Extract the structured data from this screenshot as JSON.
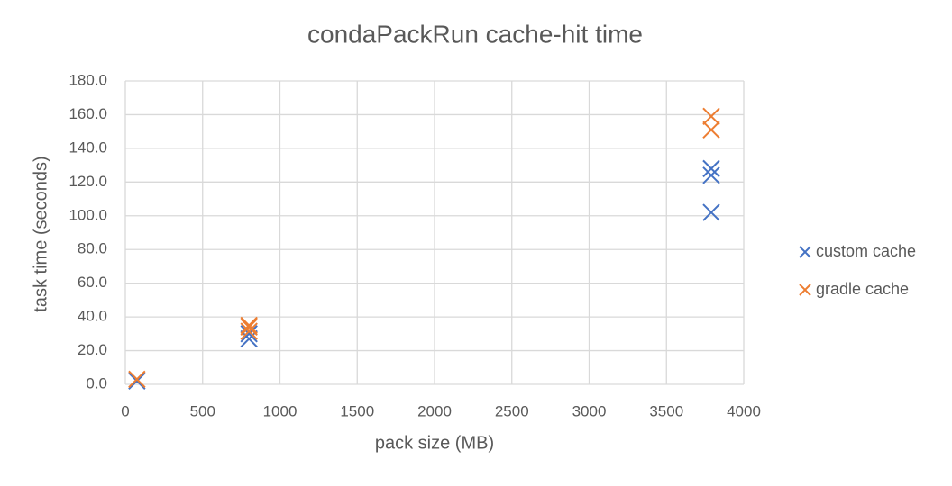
{
  "chart_data": {
    "type": "scatter",
    "title": "condaPackRun cache-hit time",
    "x_label": "pack size (MB)",
    "y_label": "task time (seconds)",
    "xlim": [
      0,
      4000
    ],
    "xticks": [
      0,
      500,
      1000,
      1500,
      2000,
      2500,
      3000,
      3500,
      4000
    ],
    "ylim": [
      0,
      180
    ],
    "yticks": [
      {
        "value": 0,
        "label": "0.0"
      },
      {
        "value": 20,
        "label": "20.0"
      },
      {
        "value": 40,
        "label": "40.0"
      },
      {
        "value": 60,
        "label": "60.0"
      },
      {
        "value": 80,
        "label": "80.0"
      },
      {
        "value": 100,
        "label": "100.0"
      },
      {
        "value": 120,
        "label": "120.0"
      },
      {
        "value": 140,
        "label": "140.0"
      },
      {
        "value": 160,
        "label": "160.0"
      },
      {
        "value": 180,
        "label": "180.0"
      }
    ],
    "grid": true,
    "legend": "right",
    "series": [
      {
        "name": "custom cache",
        "color": "#4472c4",
        "x": [
          75,
          800,
          800,
          3790,
          3790,
          3790
        ],
        "values": [
          2,
          27,
          30,
          102,
          124,
          128
        ]
      },
      {
        "name": "gradle cache",
        "color": "#ed7d31",
        "x": [
          75,
          800,
          800,
          800,
          3790,
          3790
        ],
        "values": [
          3,
          31.5,
          34,
          35,
          151,
          159
        ]
      }
    ]
  }
}
